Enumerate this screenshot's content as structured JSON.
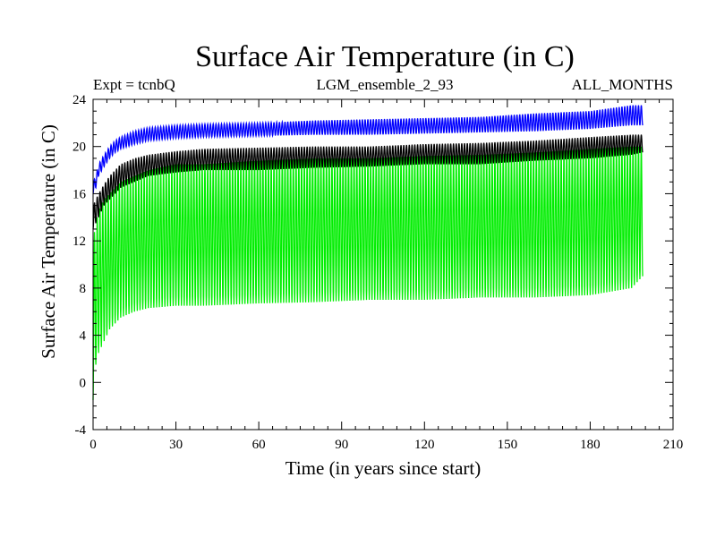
{
  "chart_data": {
    "type": "line",
    "title": "Surface Air Temperature (in C)",
    "header": {
      "left": "Expt = tcnbQ",
      "center": "LGM_ensemble_2_93",
      "right": "ALL_MONTHS"
    },
    "xlabel": "Time (in years since start)",
    "ylabel": "Surface Air Temperature (in C)",
    "xlim": [
      0,
      210
    ],
    "ylim": [
      -4,
      24
    ],
    "xticks": [
      0,
      30,
      60,
      90,
      120,
      150,
      180,
      210
    ],
    "xtick_labels": [
      "0",
      "30",
      "60",
      "90",
      "120",
      "150",
      "180",
      "210"
    ],
    "yticks": [
      -4,
      0,
      4,
      8,
      12,
      16,
      20,
      24
    ],
    "ytick_labels": [
      "-4",
      "0",
      "4",
      "8",
      "12",
      "16",
      "20",
      "24"
    ],
    "grid": false,
    "series": [
      {
        "name": "green",
        "color": "#00ee00",
        "x": [
          0,
          1,
          2,
          4,
          6,
          8,
          10,
          15,
          20,
          30,
          40,
          60,
          80,
          100,
          120,
          140,
          160,
          180,
          195,
          199
        ],
        "min": [
          -1.5,
          1.5,
          2.5,
          3.5,
          4.5,
          5.0,
          5.5,
          6.0,
          6.3,
          6.5,
          6.5,
          6.7,
          6.8,
          7.0,
          7.0,
          7.2,
          7.2,
          7.4,
          8.0,
          9.0
        ],
        "max": [
          12.0,
          13.5,
          14.5,
          15.5,
          16.0,
          16.5,
          17.0,
          17.5,
          18.0,
          18.5,
          18.5,
          18.8,
          19.0,
          19.0,
          19.2,
          19.3,
          19.5,
          19.8,
          20.0,
          20.0
        ]
      },
      {
        "name": "black",
        "color": "#000000",
        "x": [
          0,
          1,
          2,
          4,
          6,
          8,
          10,
          15,
          20,
          30,
          40,
          60,
          80,
          100,
          120,
          140,
          160,
          180,
          195,
          199
        ],
        "min": [
          13.0,
          13.5,
          14.0,
          15.0,
          15.5,
          16.0,
          16.5,
          17.0,
          17.5,
          17.8,
          18.0,
          18.0,
          18.2,
          18.3,
          18.5,
          18.5,
          18.8,
          19.0,
          19.3,
          19.5
        ],
        "max": [
          15.0,
          15.5,
          16.0,
          16.8,
          17.5,
          18.0,
          18.5,
          19.0,
          19.3,
          19.6,
          19.8,
          19.9,
          20.0,
          20.0,
          20.2,
          20.3,
          20.5,
          20.8,
          21.0,
          21.0
        ]
      },
      {
        "name": "blue",
        "color": "#0000ff",
        "x": [
          0,
          1,
          2,
          4,
          6,
          8,
          10,
          15,
          20,
          30,
          40,
          60,
          80,
          100,
          120,
          140,
          160,
          180,
          195,
          199
        ],
        "min": [
          16.0,
          16.5,
          17.5,
          18.3,
          19.0,
          19.5,
          19.8,
          20.2,
          20.5,
          20.7,
          20.8,
          20.9,
          21.0,
          21.0,
          21.1,
          21.2,
          21.3,
          21.5,
          21.8,
          21.8
        ],
        "max": [
          17.0,
          17.5,
          18.5,
          19.3,
          20.0,
          20.5,
          20.8,
          21.3,
          21.6,
          21.8,
          21.9,
          22.0,
          22.2,
          22.3,
          22.4,
          22.5,
          22.8,
          23.0,
          23.5,
          23.5
        ]
      }
    ]
  }
}
